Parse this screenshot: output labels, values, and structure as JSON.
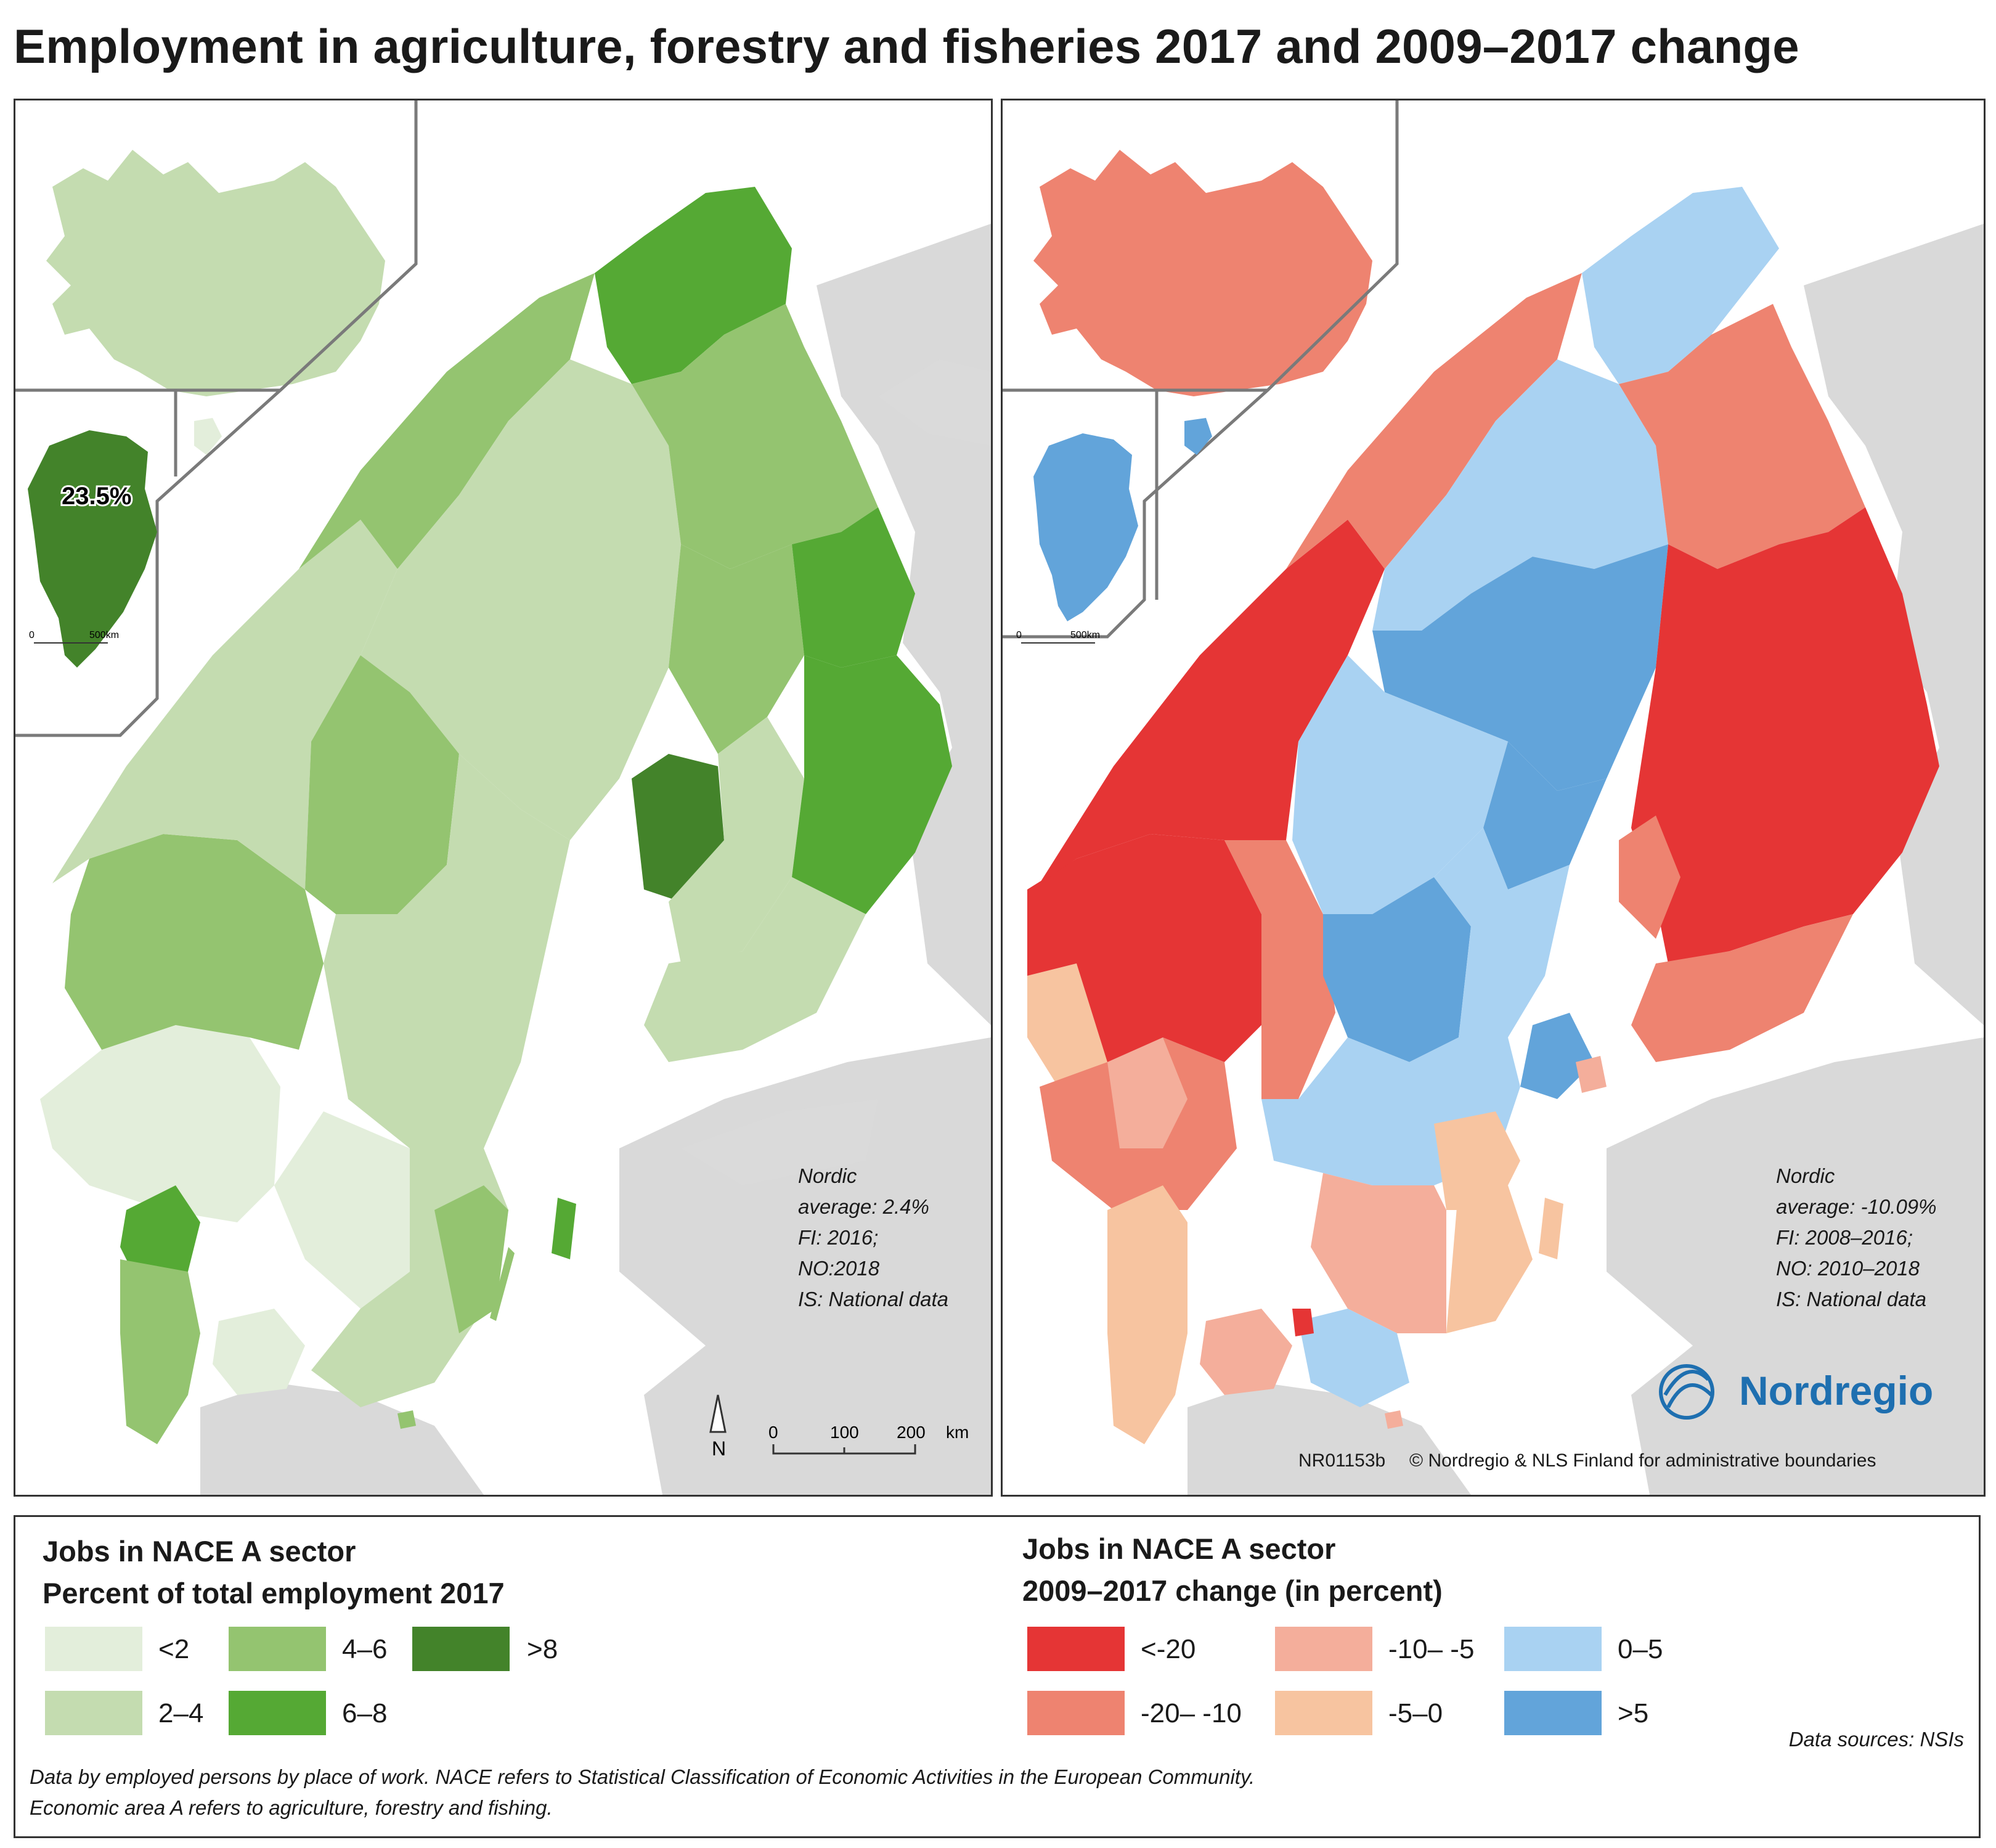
{
  "title": "Employment in agriculture, forestry and fisheries 2017 and 2009–2017 change",
  "colors": {
    "share": {
      "lt2": "#e3eedb",
      "2to4": "#c4dcb0",
      "4to6": "#94c470",
      "6to8": "#55a934",
      "gt8": "#43832a"
    },
    "change": {
      "ltm20": "#e53535",
      "m20m10": "#ee8370",
      "m10m5": "#f4ae9b",
      "m5to0": "#f7c4a0",
      "0to5": "#a9d2f2",
      "gt5": "#62a4da"
    },
    "land_background": "#d9d9d9",
    "water": "#ffffff",
    "brand": "#1e6fb0"
  },
  "left_map": {
    "greenland_label": "23.5%",
    "inset_scale": {
      "start": "0",
      "end": "500km"
    },
    "note": "Nordic\naverage: 2.4%\nFI: 2016;\nNO:2018\nIS: National data",
    "scale": {
      "ticks": [
        "0",
        "100",
        "200"
      ],
      "unit": "km"
    },
    "north": "N"
  },
  "right_map": {
    "inset_scale": {
      "start": "0",
      "end": "500km"
    },
    "note": "Nordic\naverage: -10.09%\nFI: 2008–2016;\nNO: 2010–2018\nIS: National data",
    "brand": "Nordregio",
    "map_id": "NR01153b",
    "copyright": "© Nordregio & NLS Finland for administrative boundaries"
  },
  "legend_left": {
    "title_line1": "Jobs in NACE A sector",
    "title_line2": "Percent of total employment 2017",
    "items": [
      {
        "label": "<2",
        "color": "#e3eedb"
      },
      {
        "label": "2–4",
        "color": "#c4dcb0"
      },
      {
        "label": "4–6",
        "color": "#94c470"
      },
      {
        "label": "6–8",
        "color": "#55a934"
      },
      {
        "label": ">8",
        "color": "#43832a"
      }
    ]
  },
  "legend_right": {
    "title_line1": "Jobs in NACE A sector",
    "title_line2": "2009–2017 change (in percent)",
    "items": [
      {
        "label": "<-20",
        "color": "#e53535"
      },
      {
        "label": "-20– -10",
        "color": "#ee8370"
      },
      {
        "label": "-10– -5",
        "color": "#f4ae9b"
      },
      {
        "label": "-5–0",
        "color": "#f7c4a0"
      },
      {
        "label": "0–5",
        "color": "#a9d2f2"
      },
      {
        "label": ">5",
        "color": "#62a4da"
      }
    ]
  },
  "footnote": {
    "line1": "Data by employed persons by place of work. NACE refers to Statistical Classification of Economic Activities in the European Community.",
    "line2": "Economic area A refers to agriculture, forestry and fishing."
  },
  "data_sources": "Data sources: NSIs"
}
